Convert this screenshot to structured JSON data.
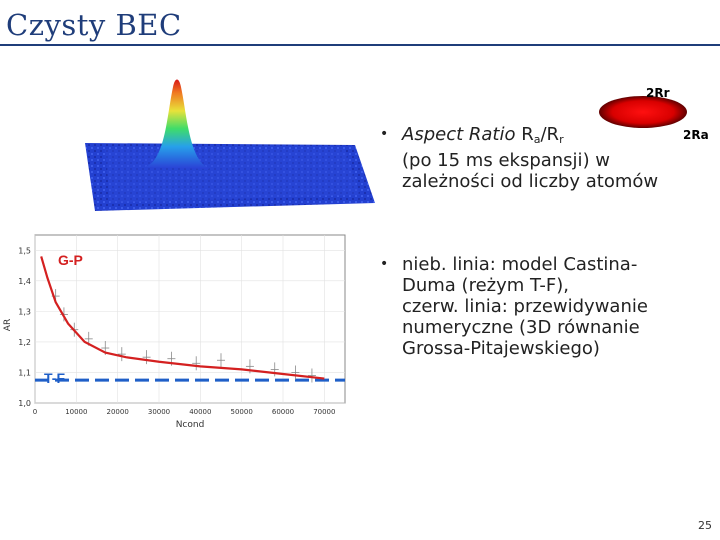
{
  "slide": {
    "title": "Czysty BEC",
    "page_number": "25"
  },
  "image_labels": {
    "radial_label": "2Rr",
    "axial_label": "2Ra"
  },
  "bullets": {
    "b1": {
      "aspect": "Aspect Ratio",
      "ra_text": "R",
      "ra_sub": "a",
      "slash": "/R",
      "rr_sub": "r",
      "line2": "(po 15 ms ekspansji)  w",
      "line3": "zależności od liczby atomów"
    },
    "b2": {
      "line1": "nieb. linia: model Castina-",
      "line2": "Duma (reżym T-F),",
      "line3": "czerw. linia: przewidywanie",
      "line4": "numeryczne (3D równanie",
      "line5": "Grossa-Pitajewskiego)"
    }
  },
  "chart_data": {
    "type": "line",
    "xlabel": "Ncond",
    "ylabel": "AR",
    "xlim": [
      0,
      75000
    ],
    "ylim": [
      1.0,
      1.55
    ],
    "x_ticks": [
      "0",
      "10000",
      "20000",
      "30000",
      "40000",
      "50000",
      "60000",
      "70000"
    ],
    "x_tick_values": [
      0,
      10000,
      20000,
      30000,
      40000,
      50000,
      60000,
      70000
    ],
    "y_ticks": [
      "1,0",
      "1,1",
      "1,2",
      "1,3",
      "1,4",
      "1,5"
    ],
    "y_tick_values": [
      1.0,
      1.1,
      1.2,
      1.3,
      1.4,
      1.5
    ],
    "annotations": [
      "G-P",
      "T-F"
    ],
    "series": [
      {
        "color": "#d42020",
        "x": [
          1500,
          3000,
          5000,
          8000,
          12000,
          17000,
          22000,
          30000,
          40000,
          50000,
          60000,
          70000
        ],
        "y": [
          1.48,
          1.41,
          1.33,
          1.26,
          1.2,
          1.165,
          1.15,
          1.135,
          1.12,
          1.11,
          1.095,
          1.08
        ]
      },
      {
        "color": "#1f5fc8",
        "style": "dashed",
        "x": [
          0,
          75000
        ],
        "y": [
          1.075,
          1.075
        ]
      }
    ],
    "points": {
      "x": [
        5000,
        7000,
        9500,
        13000,
        17000,
        21000,
        27000,
        33000,
        39000,
        45000,
        52000,
        58000,
        63000,
        67000
      ],
      "y": [
        1.35,
        1.29,
        1.24,
        1.21,
        1.18,
        1.16,
        1.15,
        1.145,
        1.13,
        1.14,
        1.12,
        1.11,
        1.1,
        1.09
      ]
    }
  }
}
